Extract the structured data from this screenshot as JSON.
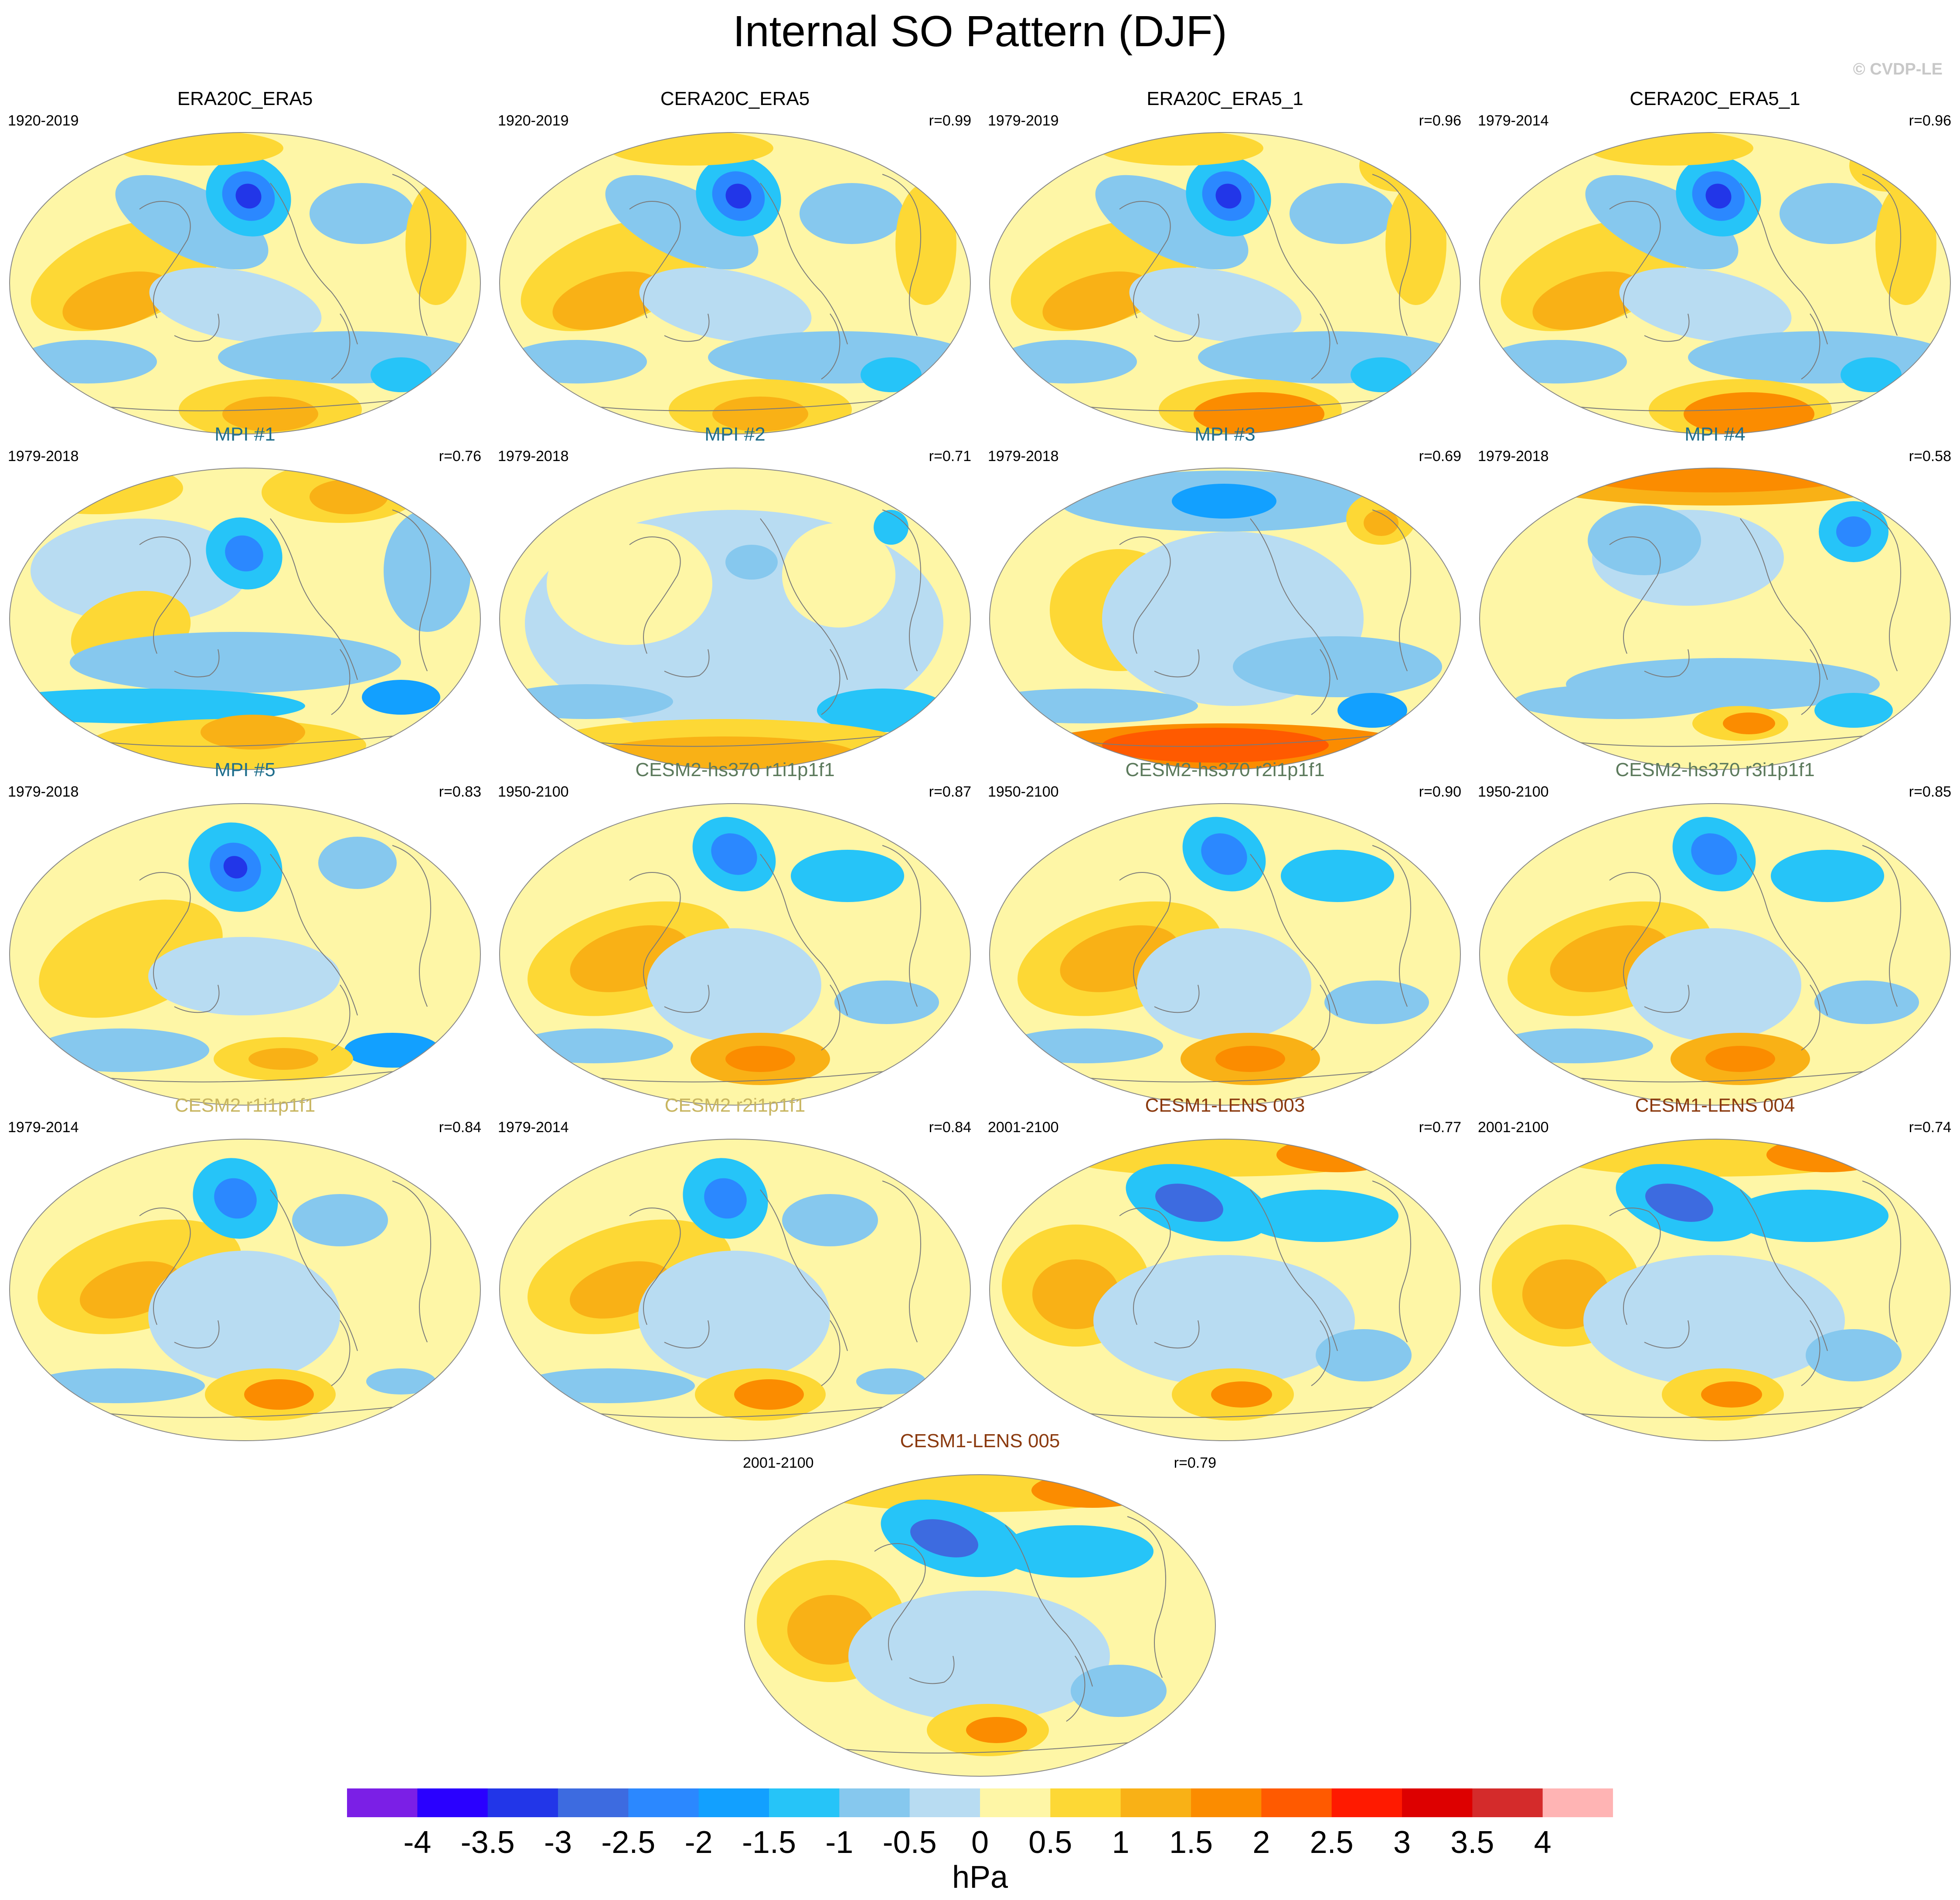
{
  "title": "Internal SO Pattern (DJF)",
  "credit": "© CVDP-LE",
  "units": "hPa",
  "panels": [
    {
      "title": "ERA20C_ERA5",
      "title_color": "#000000",
      "years": "1920-2019",
      "corr": "",
      "pattern": "obs"
    },
    {
      "title": "CERA20C_ERA5",
      "title_color": "#000000",
      "years": "1920-2019",
      "corr": "r=0.99",
      "pattern": "obs"
    },
    {
      "title": "ERA20C_ERA5_1",
      "title_color": "#000000",
      "years": "1979-2019",
      "corr": "r=0.96",
      "pattern": "obs-strong"
    },
    {
      "title": "CERA20C_ERA5_1",
      "title_color": "#000000",
      "years": "1979-2014",
      "corr": "r=0.96",
      "pattern": "obs-strong"
    },
    {
      "title": "MPI #1",
      "title_color": "#1f6e8c",
      "years": "1979-2018",
      "corr": "r=0.76",
      "pattern": "mpi1"
    },
    {
      "title": "MPI #2",
      "title_color": "#1f6e8c",
      "years": "1979-2018",
      "corr": "r=0.71",
      "pattern": "mpi2"
    },
    {
      "title": "MPI #3",
      "title_color": "#1f6e8c",
      "years": "1979-2018",
      "corr": "r=0.69",
      "pattern": "mpi3"
    },
    {
      "title": "MPI #4",
      "title_color": "#1f6e8c",
      "years": "1979-2018",
      "corr": "r=0.58",
      "pattern": "mpi4"
    },
    {
      "title": "MPI #5",
      "title_color": "#1f6e8c",
      "years": "1979-2018",
      "corr": "r=0.83",
      "pattern": "mpi5"
    },
    {
      "title": "CESM2-hs370 r1i1p1f1",
      "title_color": "#5c7a5c",
      "years": "1950-2100",
      "corr": "r=0.87",
      "pattern": "hs"
    },
    {
      "title": "CESM2-hs370 r2i1p1f1",
      "title_color": "#5c7a5c",
      "years": "1950-2100",
      "corr": "r=0.90",
      "pattern": "hs"
    },
    {
      "title": "CESM2-hs370 r3i1p1f1",
      "title_color": "#5c7a5c",
      "years": "1950-2100",
      "corr": "r=0.85",
      "pattern": "hs"
    },
    {
      "title": "CESM2 r1i1p1f1",
      "title_color": "#c8b560",
      "years": "1979-2014",
      "corr": "r=0.84",
      "pattern": "cesm2"
    },
    {
      "title": "CESM2 r2i1p1f1",
      "title_color": "#c8b560",
      "years": "1979-2014",
      "corr": "r=0.84",
      "pattern": "cesm2"
    },
    {
      "title": "CESM1-LENS 003",
      "title_color": "#8b3a0f",
      "years": "2001-2100",
      "corr": "r=0.77",
      "pattern": "lens"
    },
    {
      "title": "CESM1-LENS 004",
      "title_color": "#8b3a0f",
      "years": "2001-2100",
      "corr": "r=0.74",
      "pattern": "lens"
    },
    {
      "title": "CESM1-LENS 005",
      "title_color": "#8b3a0f",
      "years": "2001-2100",
      "corr": "r=0.79",
      "pattern": "lens"
    }
  ],
  "colorbar": {
    "colors": [
      "#7b1fe6",
      "#2a00ff",
      "#2236e8",
      "#3d6be0",
      "#2b88ff",
      "#12a0ff",
      "#26c4f8",
      "#86c8ee",
      "#b8dcf2",
      "#fef6a6",
      "#fdd835",
      "#f9b116",
      "#fb8c00",
      "#ff5a00",
      "#ff1a00",
      "#dd0000",
      "#d42b2b",
      "#ffb4b4"
    ],
    "labels": [
      "-4",
      "-3.5",
      "-3",
      "-2.5",
      "-2",
      "-1.5",
      "-1",
      "-0.5",
      "0",
      "0.5",
      "1",
      "1.5",
      "2",
      "2.5",
      "3",
      "3.5",
      "4"
    ]
  }
}
